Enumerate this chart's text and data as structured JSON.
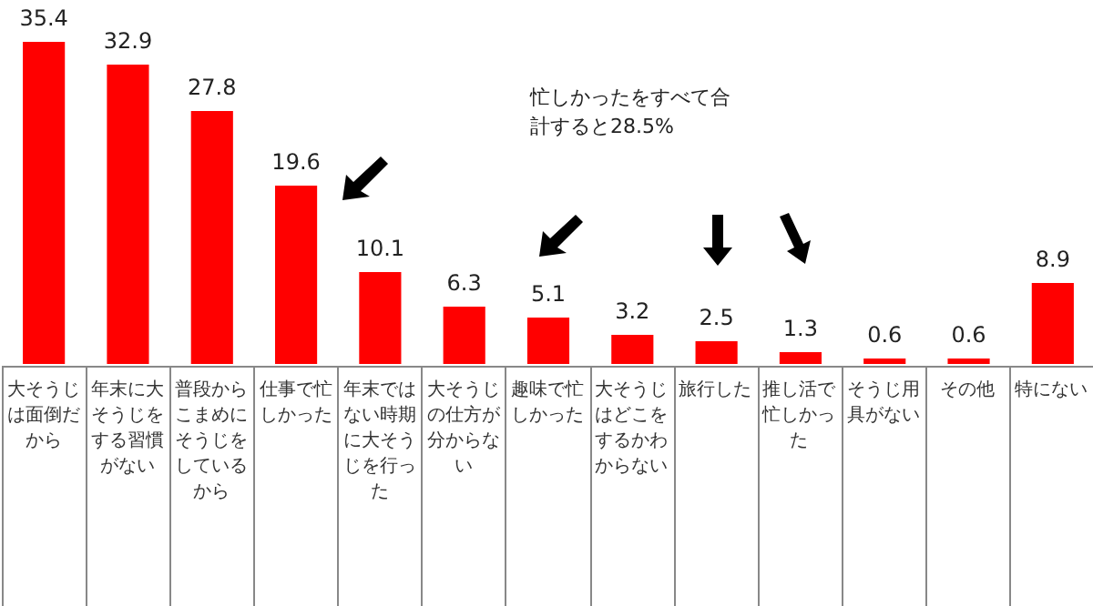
{
  "chart_data": {
    "type": "bar",
    "categories": [
      "大そうじは面倒だから",
      "年末に大そうじをする習慣がない",
      "普段からこまめにそうじをしているから",
      "仕事で忙しかった",
      "年末ではない時期に大そうじを行った",
      "大そうじの仕方が分からない",
      "趣味で忙しかった",
      "大そうじはどこをするかわからない",
      "旅行した",
      "推し活で忙しかった",
      "そうじ用具がない",
      "その他",
      "特にない"
    ],
    "values": [
      35.4,
      32.9,
      27.8,
      19.6,
      10.1,
      6.3,
      5.1,
      3.2,
      2.5,
      1.3,
      0.6,
      0.6,
      8.9
    ],
    "color": "#ff0000",
    "data_labels": true,
    "grid": false,
    "annotations": [
      "忙しかったをすべて合計すると28.5%"
    ]
  }
}
